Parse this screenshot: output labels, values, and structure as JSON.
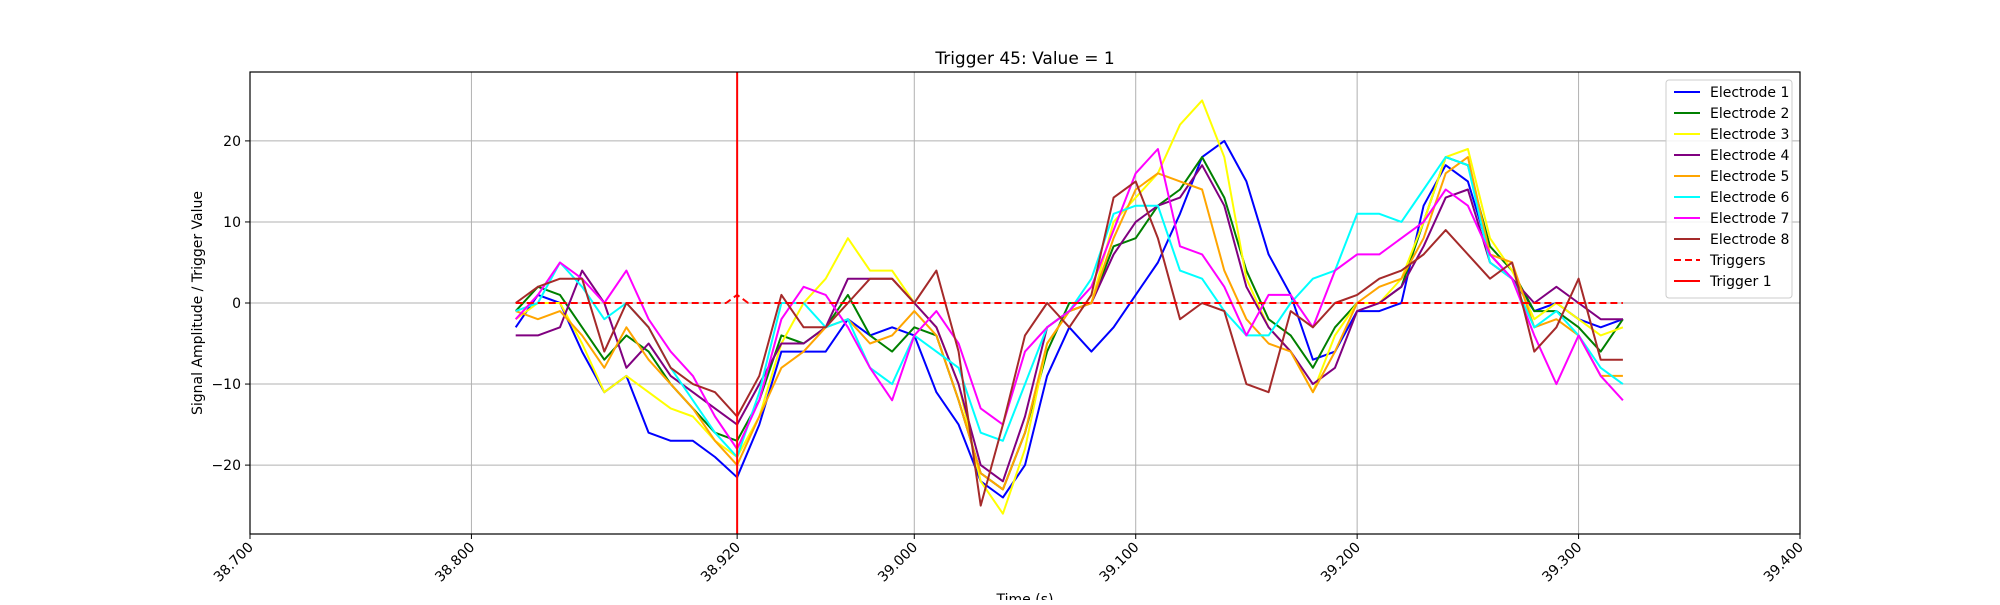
{
  "chart_data": {
    "type": "line",
    "title": "Trigger 45: Value = 1",
    "xlabel": "Time (s)",
    "ylabel": "Signal Amplitude / Trigger Value",
    "xlim": [
      38.7,
      39.4
    ],
    "ylim": [
      -28.5,
      28.5
    ],
    "xticks": [
      38.7,
      38.8,
      38.92,
      39.0,
      39.1,
      39.2,
      39.3,
      39.4
    ],
    "xtick_labels": [
      "38.700",
      "38.800",
      "38.920",
      "39.000",
      "39.100",
      "39.200",
      "39.300",
      "39.400"
    ],
    "yticks": [
      -20,
      -10,
      0,
      10,
      20
    ],
    "ytick_labels": [
      "−20",
      "−10",
      "0",
      "10",
      "20"
    ],
    "grid": true,
    "legend_position": "top-right",
    "colors": {
      "Electrode 1": "#0000ff",
      "Electrode 2": "#008000",
      "Electrode 3": "#ffff00",
      "Electrode 4": "#800080",
      "Electrode 5": "#ffa500",
      "Electrode 6": "#00ffff",
      "Electrode 7": "#ff00ff",
      "Electrode 8": "#a52a2a",
      "Triggers": "#ff0000",
      "Trigger 1": "#ff0000"
    },
    "series": [
      {
        "name": "Electrode 1",
        "x": [
          38.82,
          38.83,
          38.84,
          38.85,
          38.86,
          38.87,
          38.88,
          38.89,
          38.9,
          38.91,
          38.92,
          38.93,
          38.94,
          38.95,
          38.96,
          38.97,
          38.98,
          38.99,
          39.0,
          39.01,
          39.02,
          39.03,
          39.04,
          39.05,
          39.06,
          39.07,
          39.08,
          39.09,
          39.1,
          39.11,
          39.12,
          39.13,
          39.14,
          39.15,
          39.16,
          39.17,
          39.18,
          39.19,
          39.2,
          39.21,
          39.22,
          39.23,
          39.24,
          39.25,
          39.26,
          39.27,
          39.28,
          39.29,
          39.3,
          39.31,
          39.32
        ],
        "y": [
          -3,
          1,
          0,
          -6,
          -11,
          -9,
          -16,
          -17,
          -17,
          -19,
          -21.5,
          -15,
          -6,
          -6,
          -6,
          -2,
          -4,
          -3,
          -4,
          -11,
          -15,
          -22,
          -24,
          -20,
          -9,
          -3,
          -6,
          -3,
          1,
          5,
          11,
          18,
          20,
          15,
          6,
          1,
          -7,
          -6,
          -1,
          -1,
          0,
          12,
          17,
          15,
          6,
          3,
          -1,
          0,
          -2,
          -3,
          -2
        ]
      },
      {
        "name": "Electrode 2",
        "x": [
          38.82,
          38.83,
          38.84,
          38.85,
          38.86,
          38.87,
          38.88,
          38.89,
          38.9,
          38.91,
          38.92,
          38.93,
          38.94,
          38.95,
          38.96,
          38.97,
          38.98,
          38.99,
          39.0,
          39.01,
          39.02,
          39.03,
          39.04,
          39.05,
          39.06,
          39.07,
          39.08,
          39.09,
          39.1,
          39.11,
          39.12,
          39.13,
          39.14,
          39.15,
          39.16,
          39.17,
          39.18,
          39.19,
          39.2,
          39.21,
          39.22,
          39.23,
          39.24,
          39.25,
          39.26,
          39.27,
          39.28,
          39.29,
          39.3,
          39.31,
          39.32
        ],
        "y": [
          -1,
          2,
          1,
          -3,
          -7,
          -4,
          -6,
          -10,
          -13,
          -16,
          -17,
          -12,
          -4,
          -5,
          -3,
          1,
          -4,
          -6,
          -3,
          -4,
          -12,
          -21,
          -23,
          -16,
          -6,
          0,
          0,
          7,
          8,
          12,
          14,
          18,
          13,
          4,
          -2,
          -4,
          -8,
          -3,
          0,
          0,
          2,
          10,
          18,
          17,
          7,
          4,
          -1,
          -1,
          -3,
          -6,
          -2
        ]
      },
      {
        "name": "Electrode 3",
        "x": [
          38.82,
          38.83,
          38.84,
          38.85,
          38.86,
          38.87,
          38.88,
          38.89,
          38.9,
          38.91,
          38.92,
          38.93,
          38.94,
          38.95,
          38.96,
          38.97,
          38.98,
          38.99,
          39.0,
          39.01,
          39.02,
          39.03,
          39.04,
          39.05,
          39.06,
          39.07,
          39.08,
          39.09,
          39.1,
          39.11,
          39.12,
          39.13,
          39.14,
          39.15,
          39.16,
          39.17,
          39.18,
          39.19,
          39.2,
          39.21,
          39.22,
          39.23,
          39.24,
          39.25,
          39.26,
          39.27,
          39.28,
          39.29,
          39.3,
          39.31,
          39.32
        ],
        "y": [
          -2,
          0,
          0,
          -5,
          -11,
          -9,
          -11,
          -13,
          -14,
          -17,
          -19,
          -14,
          -5,
          0,
          3,
          8,
          4,
          4,
          0,
          -3,
          -10,
          -22,
          -26,
          -18,
          -5,
          -1,
          0,
          10,
          13,
          16,
          22,
          25,
          18,
          3,
          -3,
          -6,
          -11,
          -4,
          0,
          0,
          3,
          10,
          18,
          19,
          8,
          4,
          -2,
          0,
          -2,
          -4,
          -3
        ]
      },
      {
        "name": "Electrode 4",
        "x": [
          38.82,
          38.83,
          38.84,
          38.85,
          38.86,
          38.87,
          38.88,
          38.89,
          38.9,
          38.91,
          38.92,
          38.93,
          38.94,
          38.95,
          38.96,
          38.97,
          38.98,
          38.99,
          39.0,
          39.01,
          39.02,
          39.03,
          39.04,
          39.05,
          39.06,
          39.07,
          39.08,
          39.09,
          39.1,
          39.11,
          39.12,
          39.13,
          39.14,
          39.15,
          39.16,
          39.17,
          39.18,
          39.19,
          39.2,
          39.21,
          39.22,
          39.23,
          39.24,
          39.25,
          39.26,
          39.27,
          39.28,
          39.29,
          39.3,
          39.31,
          39.32
        ],
        "y": [
          -4,
          -4,
          -3,
          4,
          0,
          -8,
          -5,
          -9,
          -11,
          -13,
          -15,
          -10,
          -5,
          -5,
          -3,
          3,
          3,
          3,
          0,
          -3,
          -10,
          -20,
          -22,
          -14,
          -3,
          -1,
          0,
          6,
          10,
          12,
          13,
          17,
          12,
          2,
          -3,
          -6,
          -10,
          -8,
          -1,
          0,
          2,
          7,
          13,
          14,
          5,
          3,
          0,
          2,
          0,
          -2,
          -2
        ]
      },
      {
        "name": "Electrode 5",
        "x": [
          38.82,
          38.83,
          38.84,
          38.85,
          38.86,
          38.87,
          38.88,
          38.89,
          38.9,
          38.91,
          38.92,
          38.93,
          38.94,
          38.95,
          38.96,
          38.97,
          38.98,
          38.99,
          39.0,
          39.01,
          39.02,
          39.03,
          39.04,
          39.05,
          39.06,
          39.07,
          39.08,
          39.09,
          39.1,
          39.11,
          39.12,
          39.13,
          39.14,
          39.15,
          39.16,
          39.17,
          39.18,
          39.19,
          39.2,
          39.21,
          39.22,
          39.23,
          39.24,
          39.25,
          39.26,
          39.27,
          39.28,
          39.29,
          39.3,
          39.31,
          39.32
        ],
        "y": [
          -1,
          -2,
          -1,
          -4,
          -8,
          -3,
          -7,
          -10,
          -13,
          -17,
          -20,
          -14,
          -8,
          -6,
          -3,
          -2,
          -5,
          -4,
          -1,
          -4,
          -12,
          -21,
          -23,
          -16,
          -5,
          -1,
          0,
          8,
          14,
          16,
          15,
          14,
          4,
          -2,
          -5,
          -6,
          -11,
          -6,
          0,
          2,
          3,
          8,
          16,
          18,
          6,
          5,
          -3,
          -2,
          -4,
          -9,
          -9
        ]
      },
      {
        "name": "Electrode 6",
        "x": [
          38.82,
          38.83,
          38.84,
          38.85,
          38.86,
          38.87,
          38.88,
          38.89,
          38.9,
          38.91,
          38.92,
          38.93,
          38.94,
          38.95,
          38.96,
          38.97,
          38.98,
          38.99,
          39.0,
          39.01,
          39.02,
          39.03,
          39.04,
          39.05,
          39.06,
          39.07,
          39.08,
          39.09,
          39.1,
          39.11,
          39.12,
          39.13,
          39.14,
          39.15,
          39.16,
          39.17,
          39.18,
          39.19,
          39.2,
          39.21,
          39.22,
          39.23,
          39.24,
          39.25,
          39.26,
          39.27,
          39.28,
          39.29,
          39.3,
          39.31,
          39.32
        ],
        "y": [
          -1,
          0,
          5,
          2,
          -2,
          0,
          -3,
          -8,
          -12,
          -16,
          -19,
          -11,
          0,
          0,
          -3,
          -2,
          -8,
          -10,
          -4,
          -6,
          -8,
          -16,
          -17,
          -10,
          -3,
          -1,
          3,
          11,
          12,
          12,
          4,
          3,
          -1,
          -4,
          -4,
          0,
          3,
          4,
          11,
          11,
          10,
          14,
          18,
          17,
          5,
          3,
          -3,
          -1,
          -4,
          -8,
          -10
        ]
      },
      {
        "name": "Electrode 7",
        "x": [
          38.82,
          38.83,
          38.84,
          38.85,
          38.86,
          38.87,
          38.88,
          38.89,
          38.9,
          38.91,
          38.92,
          38.93,
          38.94,
          38.95,
          38.96,
          38.97,
          38.98,
          38.99,
          39.0,
          39.01,
          39.02,
          39.03,
          39.04,
          39.05,
          39.06,
          39.07,
          39.08,
          39.09,
          39.1,
          39.11,
          39.12,
          39.13,
          39.14,
          39.15,
          39.16,
          39.17,
          39.18,
          39.19,
          39.2,
          39.21,
          39.22,
          39.23,
          39.24,
          39.25,
          39.26,
          39.27,
          39.28,
          39.29,
          39.3,
          39.31,
          39.32
        ],
        "y": [
          -2,
          1,
          5,
          3,
          0,
          4,
          -2,
          -6,
          -9,
          -14,
          -18,
          -12,
          -2,
          2,
          1,
          -3,
          -8,
          -12,
          -4,
          -1,
          -5,
          -13,
          -15,
          -6,
          -3,
          -1,
          2,
          9,
          16,
          19,
          7,
          6,
          2,
          -4,
          1,
          1,
          -3,
          4,
          6,
          6,
          8,
          10,
          14,
          12,
          6,
          3,
          -4,
          -10,
          -4,
          -9,
          -12
        ]
      },
      {
        "name": "Electrode 8",
        "x": [
          38.82,
          38.83,
          38.84,
          38.85,
          38.86,
          38.87,
          38.88,
          38.89,
          38.9,
          38.91,
          38.92,
          38.93,
          38.94,
          38.95,
          38.96,
          38.97,
          38.98,
          38.99,
          39.0,
          39.01,
          39.02,
          39.03,
          39.04,
          39.05,
          39.06,
          39.07,
          39.08,
          39.09,
          39.1,
          39.11,
          39.12,
          39.13,
          39.14,
          39.15,
          39.16,
          39.17,
          39.18,
          39.19,
          39.2,
          39.21,
          39.22,
          39.23,
          39.24,
          39.25,
          39.26,
          39.27,
          39.28,
          39.29,
          39.3,
          39.31,
          39.32
        ],
        "y": [
          0,
          2,
          3,
          3,
          -6,
          0,
          -3,
          -8,
          -10,
          -11,
          -14,
          -9,
          1,
          -3,
          -3,
          0,
          3,
          3,
          0,
          4,
          -6,
          -25,
          -15,
          -4,
          0,
          -3,
          1,
          13,
          15,
          8,
          -2,
          0,
          -1,
          -10,
          -11,
          -1,
          -3,
          0,
          1,
          3,
          4,
          6,
          9,
          6,
          3,
          5,
          -6,
          -3,
          3,
          -7,
          -7
        ]
      },
      {
        "name": "Triggers",
        "x": [
          38.82,
          38.915,
          38.92,
          38.925,
          39.32
        ],
        "y": [
          0,
          0,
          1,
          0,
          0
        ],
        "dashed": true
      }
    ],
    "vlines": [
      {
        "name": "Trigger 1",
        "x": 38.92
      }
    ],
    "legend": [
      "Electrode 1",
      "Electrode 2",
      "Electrode 3",
      "Electrode 4",
      "Electrode 5",
      "Electrode 6",
      "Electrode 7",
      "Electrode 8",
      "Triggers",
      "Trigger 1"
    ]
  }
}
